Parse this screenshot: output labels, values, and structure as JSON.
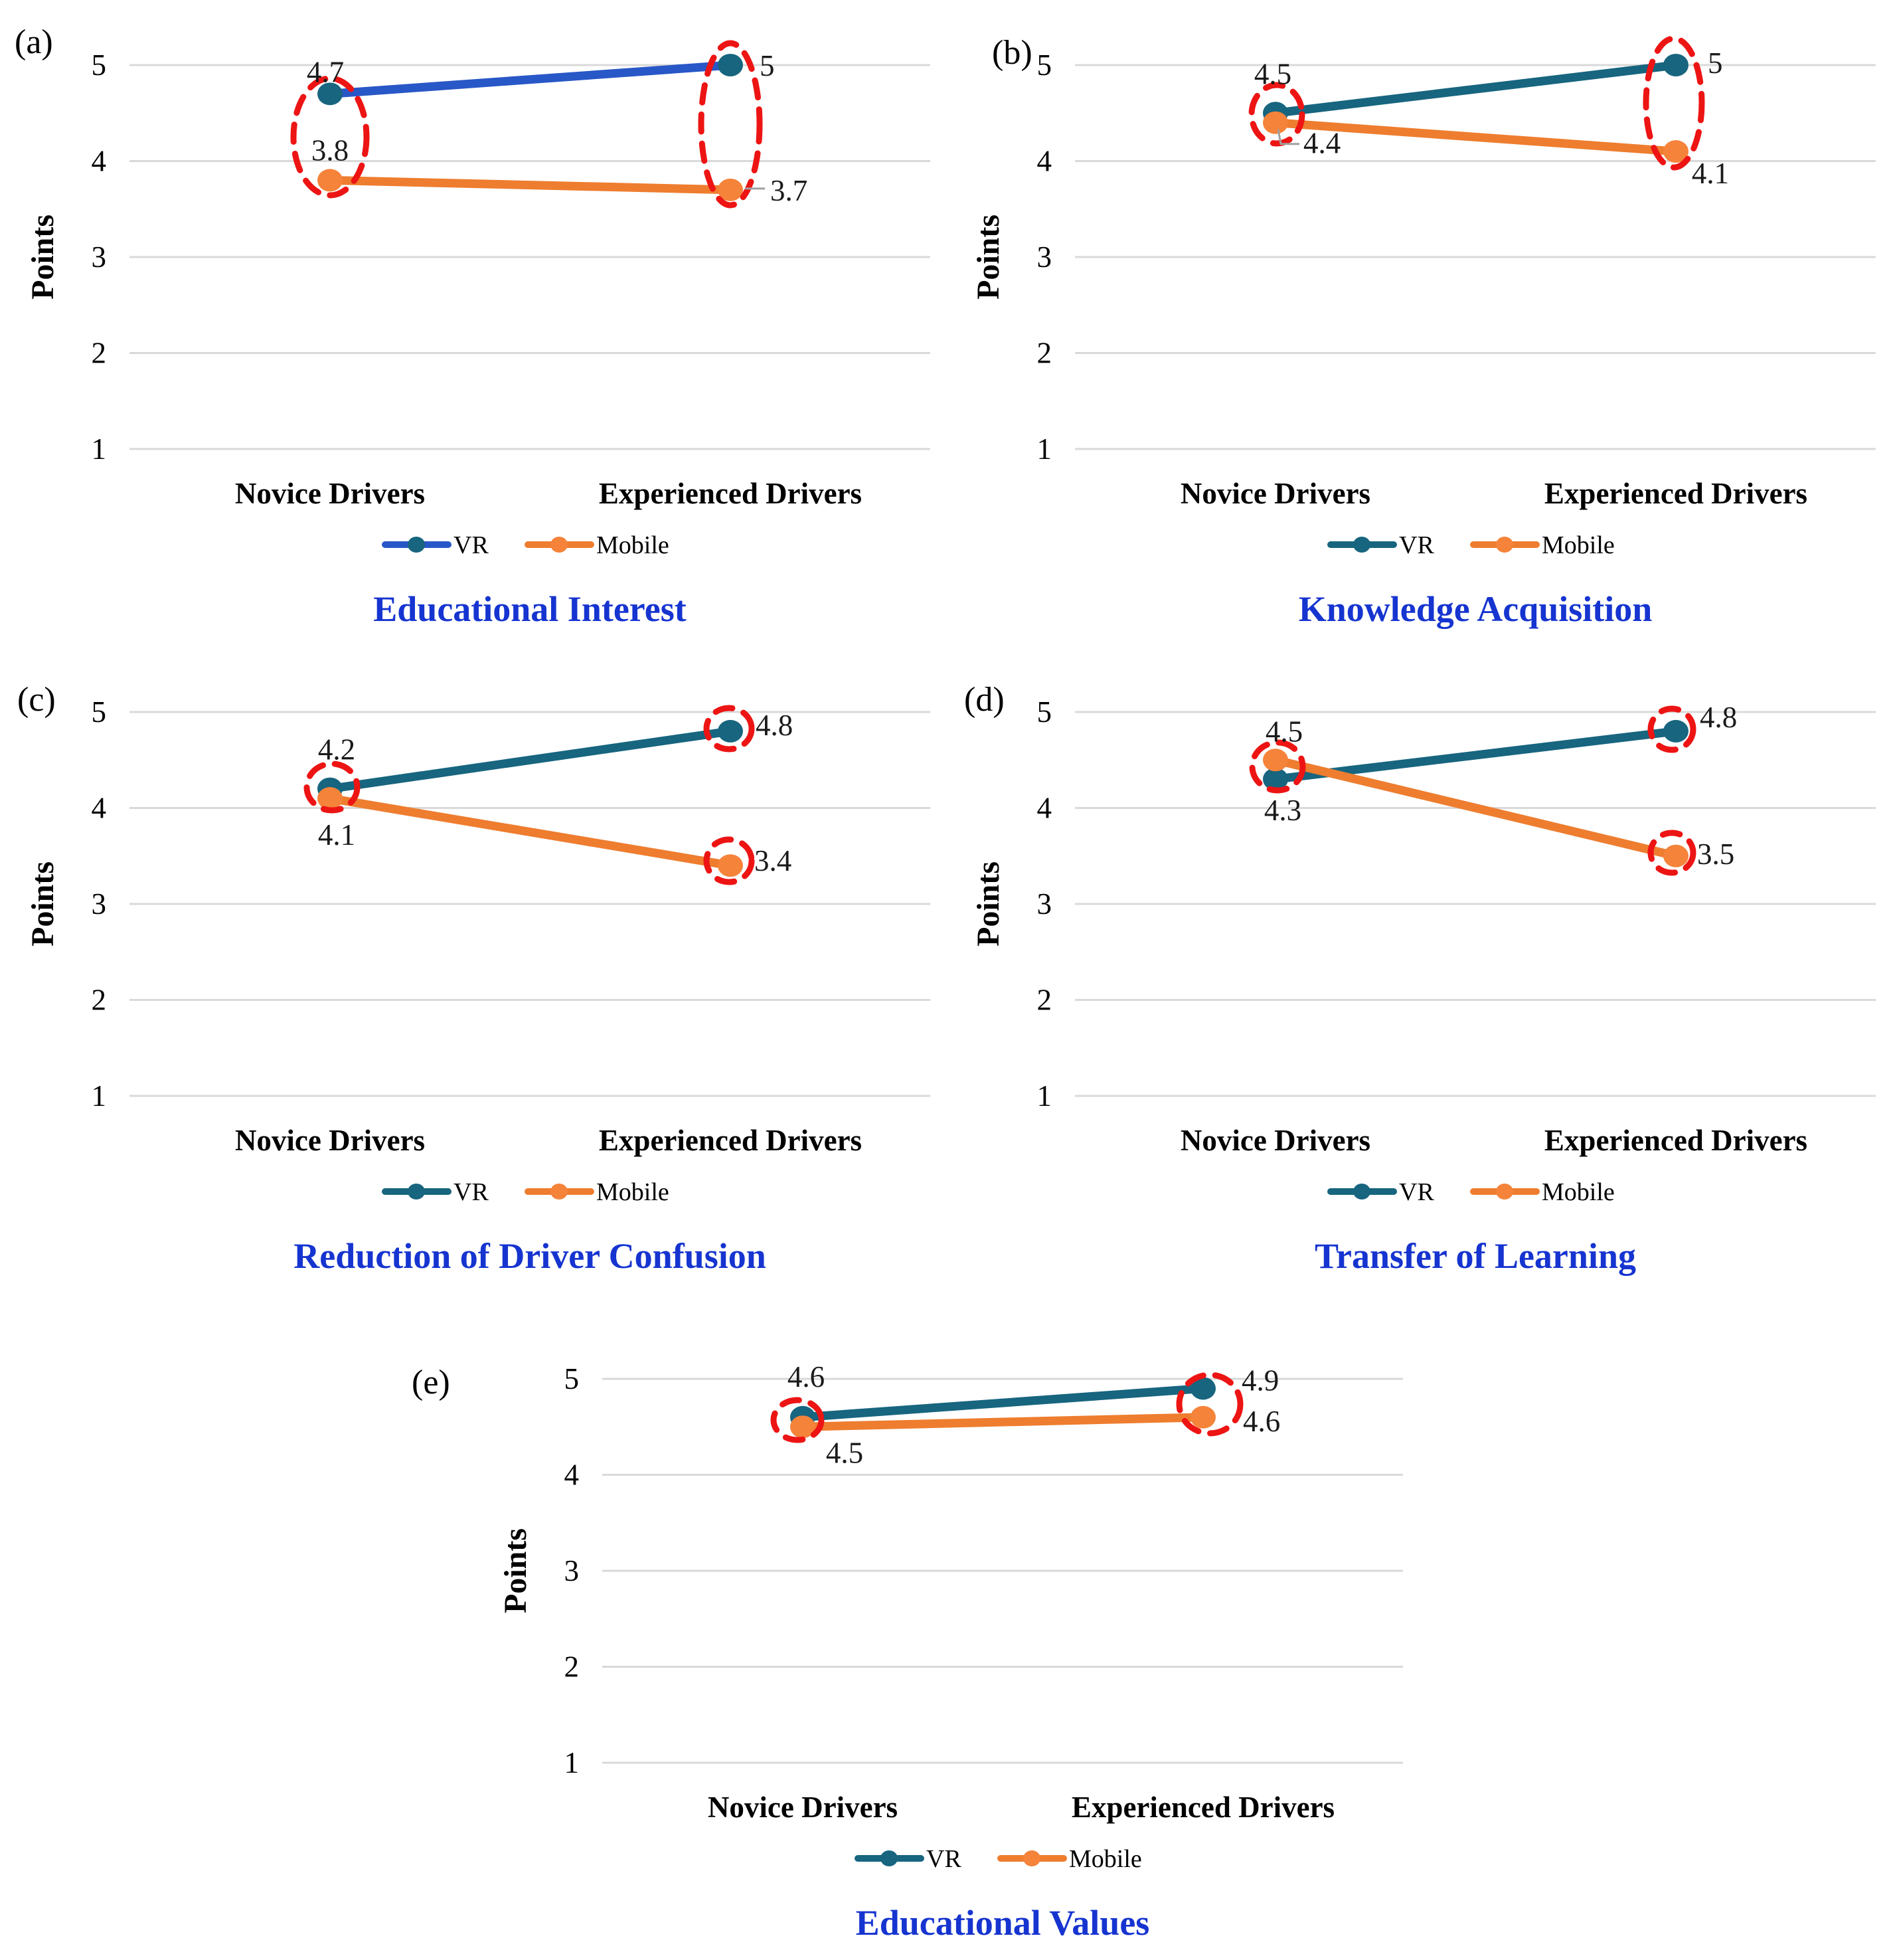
{
  "figure_caption_letters": [
    "(a)",
    "(b)",
    "(c)",
    "(d)",
    "(e)"
  ],
  "axis": {
    "ylabel": "Points",
    "yticks": [
      "5",
      "4",
      "3",
      "2",
      "1"
    ],
    "categories": [
      "Novice Drivers",
      "Experienced Drivers"
    ]
  },
  "legend": {
    "items": [
      {
        "label": "VR"
      },
      {
        "label": "Mobile"
      }
    ]
  },
  "colors": {
    "vr_line_panel_a": "#2857C7",
    "vr_teal": "#17657F",
    "mobile_orange": "#EE7D2F",
    "mobile_marker": "#F5833A",
    "title_blue": "#1634D0",
    "grid_gray": "#D9D9D9",
    "highlight_red": "#ED1414",
    "leader_gray": "#A0A0A0",
    "value_text": "#1A1A1A",
    "text_black": "#000000"
  },
  "chart_data": [
    {
      "key": "a",
      "panel_letter": "(a)",
      "letter_pos": [
        22,
        80
      ],
      "type": "line",
      "title": "Educational Interest",
      "ylabel": "Points",
      "ylim": [
        1,
        5
      ],
      "yticks": [
        5,
        4,
        3,
        2,
        1
      ],
      "grid": "horizontal",
      "legend_position": "bottom",
      "categories": [
        "Novice Drivers",
        "Experienced Drivers"
      ],
      "series": [
        {
          "name": "VR",
          "values": [
            4.7,
            5
          ],
          "line_color": "vr_line_panel_a",
          "marker_color": "vr_teal",
          "labels": [
            {
              "text": "4.7",
              "anchor": "middle",
              "dx": -7,
              "dy": -18
            },
            {
              "text": "5",
              "anchor": "start",
              "dx": 44,
              "dy": 16
            }
          ]
        },
        {
          "name": "Mobile",
          "values": [
            3.8,
            3.7
          ],
          "line_color": "mobile_orange",
          "marker_color": "mobile_marker",
          "labels": [
            {
              "text": "3.8",
              "anchor": "middle",
              "dx": 0,
              "dy": -30
            },
            {
              "text": "3.7",
              "anchor": "start",
              "dx": 60,
              "dy": 16,
              "leader": {
                "pts": [
                  [
                    22,
                    -2
                  ],
                  [
                    52,
                    -2
                  ]
                ]
              }
            }
          ]
        }
      ],
      "highlights": [
        {
          "cat": 0,
          "cx": 497,
          "cy": 206,
          "rx": 55,
          "ry": 88
        },
        {
          "cat": 1,
          "cx": 1100,
          "cy": 187,
          "rx": 44,
          "ry": 122
        }
      ]
    },
    {
      "key": "b",
      "panel_letter": "(b)",
      "letter_pos": [
        70,
        96
      ],
      "type": "line",
      "title": "Knowledge Acquisition",
      "ylabel": "Points",
      "ylim": [
        1,
        5
      ],
      "yticks": [
        5,
        4,
        3,
        2,
        1
      ],
      "grid": "horizontal",
      "legend_position": "bottom",
      "categories": [
        "Novice Drivers",
        "Experienced Drivers"
      ],
      "series": [
        {
          "name": "VR",
          "values": [
            4.5,
            5
          ],
          "line_color": "vr_teal",
          "marker_color": "vr_teal",
          "labels": [
            {
              "text": "4.5",
              "anchor": "middle",
              "dx": -4,
              "dy": -44
            },
            {
              "text": "5",
              "anchor": "start",
              "dx": 48,
              "dy": 12
            }
          ]
        },
        {
          "name": "Mobile",
          "values": [
            4.4,
            4.1
          ],
          "line_color": "mobile_orange",
          "marker_color": "mobile_marker",
          "labels": [
            {
              "text": "4.4",
              "anchor": "start",
              "dx": 42,
              "dy": 46,
              "leader": {
                "pts": [
                  [
                    4,
                    10
                  ],
                  [
                    8,
                    32
                  ],
                  [
                    36,
                    32
                  ]
                ]
              }
            },
            {
              "text": "4.1",
              "anchor": "middle",
              "dx": 52,
              "dy": 48
            }
          ]
        }
      ],
      "highlights": [
        {
          "cat": 0,
          "cx": 499,
          "cy": 172,
          "rx": 38,
          "ry": 44
        },
        {
          "cat": 1,
          "cx": 1097,
          "cy": 155,
          "rx": 42,
          "ry": 97
        }
      ]
    },
    {
      "key": "c",
      "panel_letter": "(c)",
      "letter_pos": [
        26,
        96
      ],
      "type": "line",
      "title": "Reduction of Driver Confusion",
      "ylabel": "Points",
      "ylim": [
        1,
        5
      ],
      "yticks": [
        5,
        4,
        3,
        2,
        1
      ],
      "grid": "horizontal",
      "legend_position": "bottom",
      "categories": [
        "Novice Drivers",
        "Experienced Drivers"
      ],
      "series": [
        {
          "name": "VR",
          "values": [
            4.2,
            4.8
          ],
          "line_color": "vr_teal",
          "marker_color": "vr_teal",
          "labels": [
            {
              "text": "4.2",
              "anchor": "middle",
              "dx": 10,
              "dy": -44
            },
            {
              "text": "4.8",
              "anchor": "start",
              "dx": 38,
              "dy": 6
            }
          ]
        },
        {
          "name": "Mobile",
          "values": [
            4.1,
            3.4
          ],
          "line_color": "mobile_orange",
          "marker_color": "mobile_marker",
          "labels": [
            {
              "text": "4.1",
              "anchor": "middle",
              "dx": 10,
              "dy": 70
            },
            {
              "text": "3.4",
              "anchor": "start",
              "dx": 36,
              "dy": 8
            }
          ]
        }
      ],
      "highlights": [
        {
          "cat": 0,
          "cx": 500,
          "cy": 211,
          "rx": 38,
          "ry": 35
        },
        {
          "cat": 1,
          "cx": 1098,
          "cy": 123,
          "rx": 34,
          "ry": 31
        },
        {
          "cat": 1,
          "cx": 1098,
          "cy": 322,
          "rx": 34,
          "ry": 32
        }
      ]
    },
    {
      "key": "d",
      "panel_letter": "(d)",
      "letter_pos": [
        28,
        96
      ],
      "type": "line",
      "title": "Transfer of Learning",
      "ylabel": "Points",
      "ylim": [
        1,
        5
      ],
      "yticks": [
        5,
        4,
        3,
        2,
        1
      ],
      "grid": "horizontal",
      "legend_position": "bottom",
      "categories": [
        "Novice Drivers",
        "Experienced Drivers"
      ],
      "series": [
        {
          "name": "VR",
          "values": [
            4.3,
            4.8
          ],
          "line_color": "vr_teal",
          "marker_color": "vr_teal",
          "labels": [
            {
              "text": "4.3",
              "anchor": "middle",
              "dx": 11,
              "dy": 62
            },
            {
              "text": "4.8",
              "anchor": "start",
              "dx": 36,
              "dy": -6
            }
          ]
        },
        {
          "name": "Mobile",
          "values": [
            4.5,
            3.5
          ],
          "line_color": "mobile_orange",
          "marker_color": "mobile_marker",
          "labels": [
            {
              "text": "4.5",
              "anchor": "middle",
              "dx": 13,
              "dy": -28
            },
            {
              "text": "3.5",
              "anchor": "start",
              "dx": 32,
              "dy": 12
            }
          ]
        }
      ],
      "highlights": [
        {
          "cat": 0,
          "cx": 500,
          "cy": 180,
          "rx": 38,
          "ry": 36
        },
        {
          "cat": 1,
          "cx": 1094,
          "cy": 124,
          "rx": 32,
          "ry": 31
        },
        {
          "cat": 1,
          "cx": 1094,
          "cy": 310,
          "rx": 32,
          "ry": 30
        }
      ]
    },
    {
      "key": "e",
      "panel_letter": "(e)",
      "letter_pos": [
        -92,
        120
      ],
      "type": "line",
      "title": "Educational Values",
      "ylabel": "Points",
      "ylim": [
        1,
        5
      ],
      "yticks": [
        5,
        4,
        3,
        2,
        1
      ],
      "grid": "horizontal",
      "legend_position": "bottom",
      "categories": [
        "Novice Drivers",
        "Experienced Drivers"
      ],
      "series": [
        {
          "name": "VR",
          "values": [
            4.6,
            4.9
          ],
          "line_color": "vr_teal",
          "marker_color": "vr_teal",
          "labels": [
            {
              "text": "4.6",
              "anchor": "middle",
              "dx": 5,
              "dy": -46
            },
            {
              "text": "4.9",
              "anchor": "start",
              "dx": 58,
              "dy": 3
            }
          ]
        },
        {
          "name": "Mobile",
          "values": [
            4.5,
            4.6
          ],
          "line_color": "mobile_orange",
          "marker_color": "mobile_marker",
          "labels": [
            {
              "text": "4.5",
              "anchor": "middle",
              "dx": 63,
              "dy": 54
            },
            {
              "text": "4.6",
              "anchor": "start",
              "dx": 60,
              "dy": 21
            }
          ]
        }
      ],
      "highlights": [
        {
          "cat": 0,
          "cx": 489,
          "cy": 160,
          "rx": 36,
          "ry": 30
        },
        {
          "cat": 1,
          "cx": 1110,
          "cy": 136,
          "rx": 46,
          "ry": 44
        }
      ]
    }
  ]
}
